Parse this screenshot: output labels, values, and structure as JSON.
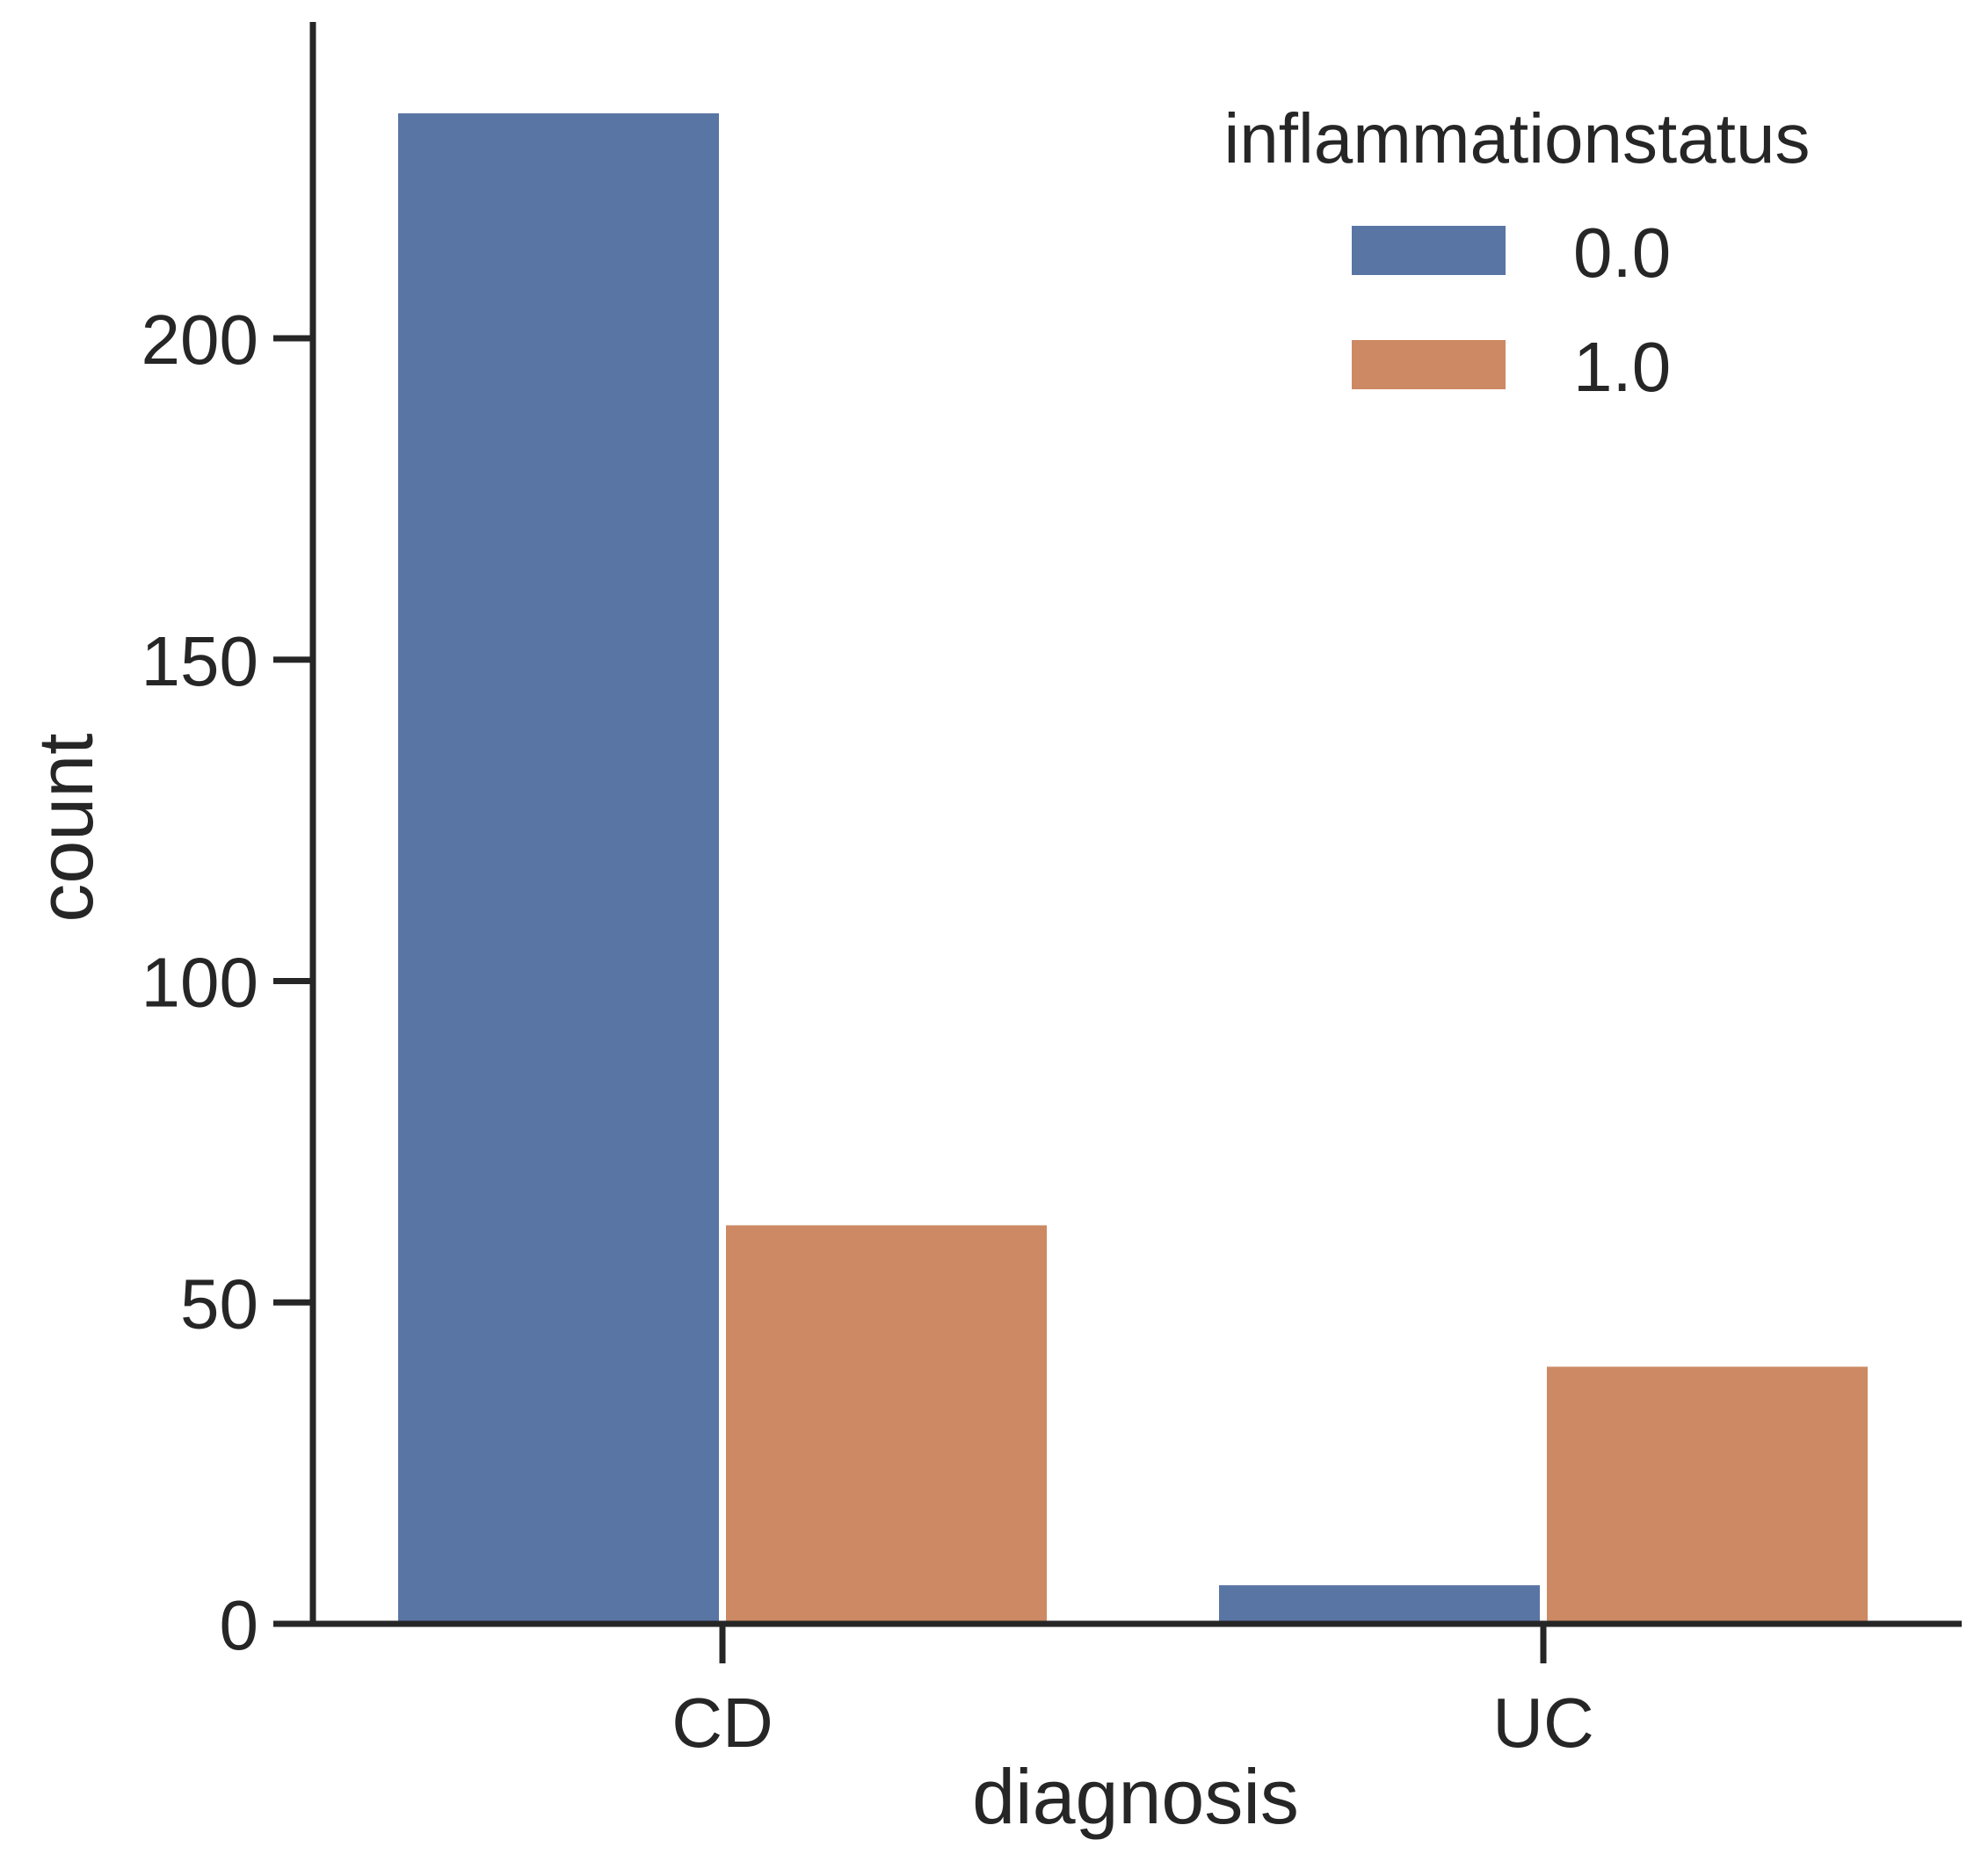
{
  "chart_data": {
    "type": "bar",
    "title": "",
    "xlabel": "diagnosis",
    "ylabel": "count",
    "categories": [
      "CD",
      "UC"
    ],
    "ylim": [
      0,
      248
    ],
    "yticks": [
      0,
      50,
      100,
      150,
      200
    ],
    "grid": false,
    "legend": {
      "title": "inflammationstatus",
      "position": "top-right"
    },
    "series": [
      {
        "name": "0.0",
        "values": [
          235,
          6
        ],
        "color": "#5975a4"
      },
      {
        "name": "1.0",
        "values": [
          62,
          40
        ],
        "color": "#cc8963"
      }
    ]
  }
}
